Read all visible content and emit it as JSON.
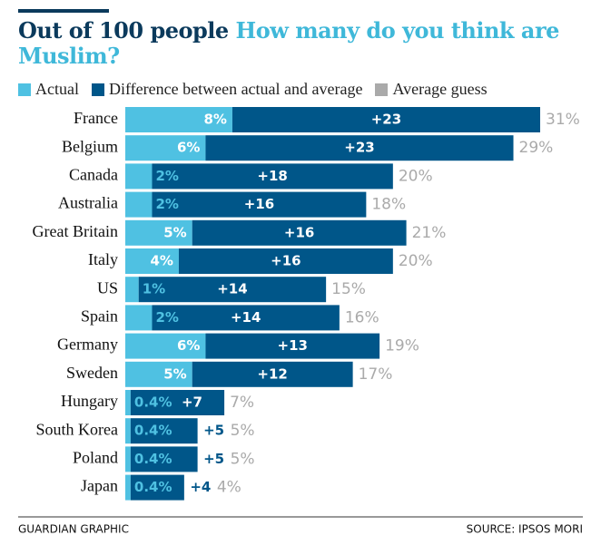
{
  "chart_data": {
    "type": "stacked-bar-horizontal",
    "title_lead": "Out of 100 people",
    "title": "How many do you think are Muslim?",
    "categories": [
      "France",
      "Belgium",
      "Canada",
      "Australia",
      "Great Britain",
      "Italy",
      "US",
      "Spain",
      "Germany",
      "Sweden",
      "Hungary",
      "South Korea",
      "Poland",
      "Japan"
    ],
    "series": [
      {
        "name": "Actual",
        "color": "#4fc1e2",
        "values": [
          8,
          6,
          2,
          2,
          5,
          4,
          1,
          2,
          6,
          5,
          0.4,
          0.4,
          0.4,
          0.4
        ],
        "value_labels": [
          "8%",
          "6%",
          "2%",
          "2%",
          "5%",
          "4%",
          "1%",
          "2%",
          "6%",
          "5%",
          "0.4%",
          "0.4%",
          "0.4%",
          "0.4%"
        ]
      },
      {
        "name": "Difference between actual and average",
        "color": "#005689",
        "values": [
          23,
          23,
          18,
          16,
          16,
          16,
          14,
          14,
          13,
          12,
          7,
          5,
          5,
          4
        ],
        "value_labels": [
          "+23",
          "+23",
          "+18",
          "+16",
          "+16",
          "+16",
          "+14",
          "+14",
          "+13",
          "+12",
          "+7",
          "+5",
          "+5",
          "+4"
        ]
      },
      {
        "name": "Average guess",
        "color": "#aaaaaa",
        "values": [
          31,
          29,
          20,
          18,
          21,
          20,
          15,
          16,
          19,
          17,
          7,
          5,
          5,
          4
        ],
        "value_labels": [
          "31%",
          "29%",
          "20%",
          "18%",
          "21%",
          "20%",
          "15%",
          "16%",
          "19%",
          "17%",
          "7%",
          "5%",
          "5%",
          "4%"
        ]
      }
    ],
    "footer_left": "GUARDIAN GRAPHIC",
    "footer_right": "SOURCE: IPSOS MORI"
  }
}
